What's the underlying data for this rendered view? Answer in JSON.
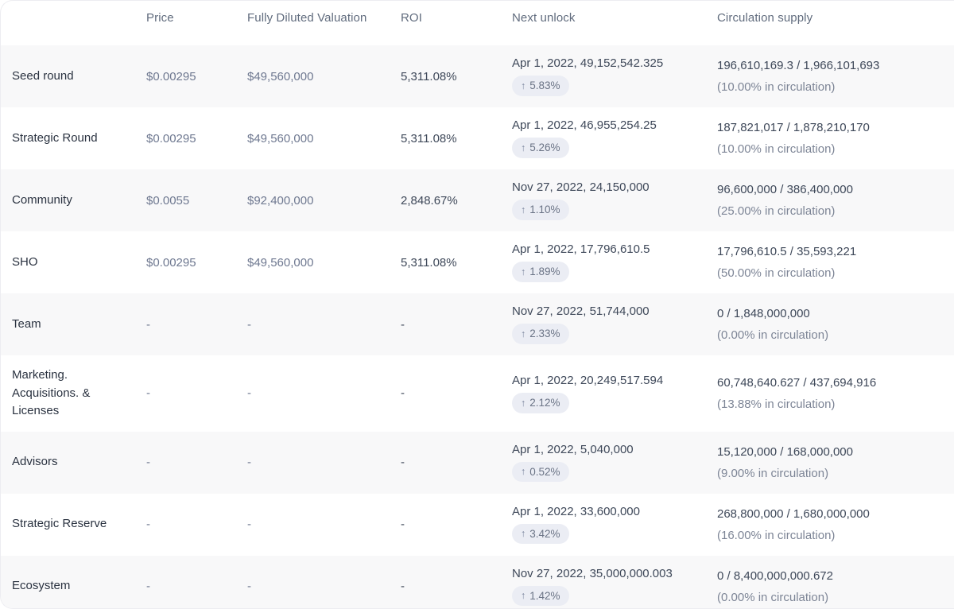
{
  "table": {
    "columns": [
      "",
      "Price",
      "Fully Diluted Valuation",
      "ROI",
      "Next unlock",
      "Circulation supply"
    ],
    "rows": [
      {
        "name": "Seed round",
        "price": "$0.00295",
        "fdv": "$49,560,000",
        "roi": "5,311.08%",
        "next_unlock": "Apr 1, 2022, 49,152,542.325",
        "unlock_percent": "5.83%",
        "supply": "196,610,169.3 / 1,966,101,693",
        "supply_note": "(10.00% in circulation)"
      },
      {
        "name": "Strategic Round",
        "price": "$0.00295",
        "fdv": "$49,560,000",
        "roi": "5,311.08%",
        "next_unlock": "Apr 1, 2022, 46,955,254.25",
        "unlock_percent": "5.26%",
        "supply": "187,821,017 / 1,878,210,170",
        "supply_note": "(10.00% in circulation)"
      },
      {
        "name": "Community",
        "price": "$0.0055",
        "fdv": "$92,400,000",
        "roi": "2,848.67%",
        "next_unlock": "Nov 27, 2022, 24,150,000",
        "unlock_percent": "1.10%",
        "supply": "96,600,000 / 386,400,000",
        "supply_note": "(25.00% in circulation)"
      },
      {
        "name": "SHO",
        "price": "$0.00295",
        "fdv": "$49,560,000",
        "roi": "5,311.08%",
        "next_unlock": "Apr 1, 2022, 17,796,610.5",
        "unlock_percent": "1.89%",
        "supply": "17,796,610.5 / 35,593,221",
        "supply_note": "(50.00% in circulation)"
      },
      {
        "name": "Team",
        "price": "-",
        "fdv": "-",
        "roi": "-",
        "next_unlock": "Nov 27, 2022, 51,744,000",
        "unlock_percent": "2.33%",
        "supply": "0 / 1,848,000,000",
        "supply_note": "(0.00% in circulation)"
      },
      {
        "name": "Marketing. Acquisitions. & Licenses",
        "price": "-",
        "fdv": "-",
        "roi": "-",
        "next_unlock": "Apr 1, 2022, 20,249,517.594",
        "unlock_percent": "2.12%",
        "supply": "60,748,640.627 / 437,694,916",
        "supply_note": "(13.88% in circulation)"
      },
      {
        "name": "Advisors",
        "price": "-",
        "fdv": "-",
        "roi": "-",
        "next_unlock": "Apr 1, 2022, 5,040,000",
        "unlock_percent": "0.52%",
        "supply": "15,120,000 / 168,000,000",
        "supply_note": "(9.00% in circulation)"
      },
      {
        "name": "Strategic Reserve",
        "price": "-",
        "fdv": "-",
        "roi": "-",
        "next_unlock": "Apr 1, 2022, 33,600,000",
        "unlock_percent": "3.42%",
        "supply": "268,800,000 / 1,680,000,000",
        "supply_note": "(16.00% in circulation)"
      },
      {
        "name": "Ecosystem",
        "price": "-",
        "fdv": "-",
        "roi": "-",
        "next_unlock": "Nov 27, 2022, 35,000,000.003",
        "unlock_percent": "1.42%",
        "supply": "0 / 8,400,000,000.672",
        "supply_note": "(0.00% in circulation)"
      }
    ]
  },
  "icons": {
    "arrow_up": "↑"
  },
  "colors": {
    "row_alt_bg": "#f8f8f9",
    "badge_bg": "#ebedf4",
    "badge_text": "#6b7486",
    "header_text": "#616c7e",
    "label_text": "#2a3240",
    "value_muted": "#6e7890",
    "value_dark": "#3e4859",
    "note_text": "#7d8596",
    "card_border": "#ededf1"
  }
}
